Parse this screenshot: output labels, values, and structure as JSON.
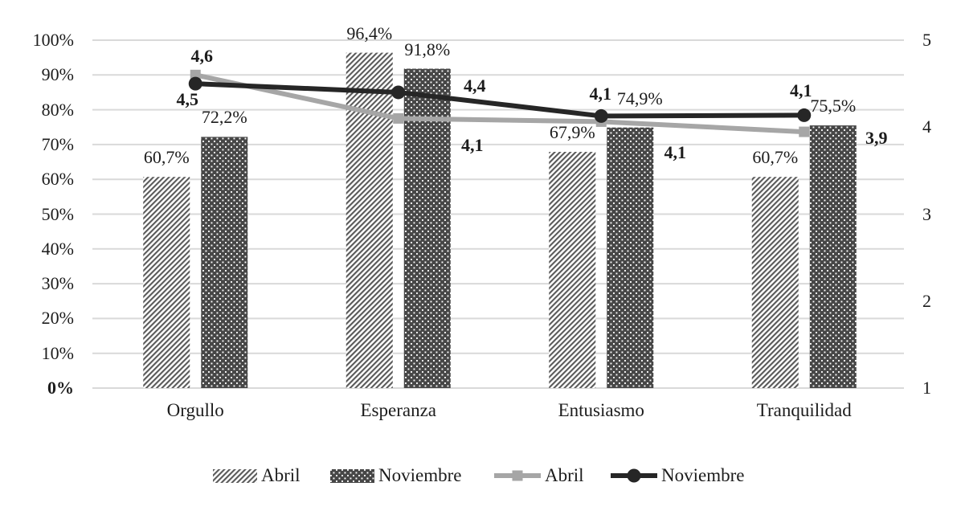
{
  "chart_data": {
    "type": "combo-bar-line",
    "title": "",
    "categories": [
      "Orgullo",
      "Esperanza",
      "Entusiasmo",
      "Tranquilidad"
    ],
    "bar_series": [
      {
        "name": "Abril",
        "style": "diagonal-hatch",
        "axis": "left",
        "values": [
          60.7,
          96.4,
          67.9,
          60.7
        ],
        "labels": [
          "60,7%",
          "96,4%",
          "67,9%",
          "60,7%"
        ]
      },
      {
        "name": "Noviembre",
        "style": "dark-dots",
        "axis": "left",
        "values": [
          72.2,
          91.8,
          74.9,
          75.5
        ],
        "labels": [
          "72,2%",
          "91,8%",
          "74,9%",
          "75,5%"
        ]
      }
    ],
    "line_series": [
      {
        "name": "Abril",
        "marker": "square",
        "color": "#a6a6a6",
        "axis": "right",
        "values": [
          4.6,
          4.1,
          4.1,
          3.9
        ],
        "labels": [
          "4,6",
          "4,1",
          "4,1",
          "3,9"
        ]
      },
      {
        "name": "Noviembre",
        "marker": "circle",
        "color": "#262626",
        "axis": "right",
        "values": [
          4.5,
          4.4,
          4.1,
          4.1
        ],
        "labels": [
          "4,5",
          "4,4",
          "4,1",
          "4,1"
        ]
      }
    ],
    "left_axis": {
      "ticks": [
        "100%",
        "90%",
        "80%",
        "70%",
        "60%",
        "50%",
        "40%",
        "30%",
        "20%",
        "10%",
        "0%"
      ],
      "min": 0,
      "max": 100
    },
    "right_axis": {
      "ticks": [
        "5",
        "4",
        "3",
        "2",
        "1"
      ],
      "min": 1,
      "max": 5
    },
    "legend": [
      {
        "label": "Abril",
        "swatch": "hatch-bar"
      },
      {
        "label": "Noviembre",
        "swatch": "dots-bar"
      },
      {
        "label": "Abril",
        "swatch": "gray-line-square"
      },
      {
        "label": "Noviembre",
        "swatch": "dark-line-circle"
      }
    ],
    "legend_position": "bottom",
    "grid": true,
    "colors": {
      "gridline": "#d9d9d9",
      "bar_dark_fill": "#474747",
      "hatch_stripe": "#595959",
      "line_gray": "#a6a6a6",
      "line_dark": "#262626",
      "text": "#1c1c1c"
    }
  }
}
